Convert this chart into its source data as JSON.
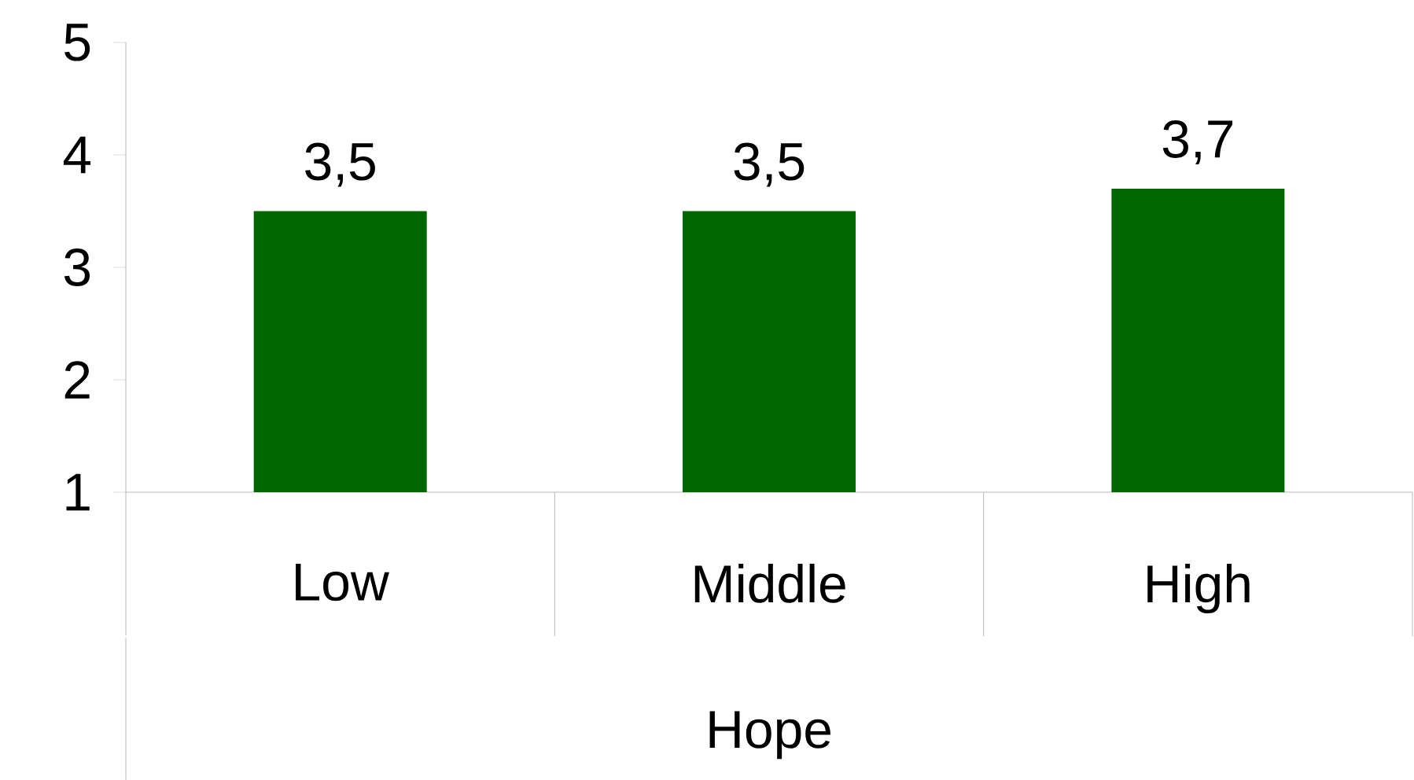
{
  "chart_data": {
    "type": "bar",
    "xlabel": "Hope",
    "categories": [
      "Low",
      "Middle",
      "High"
    ],
    "values": [
      3.5,
      3.5,
      3.7
    ],
    "value_labels": [
      "3,5",
      "3,5",
      "3,7"
    ],
    "color": "#006600",
    "ylim": [
      1,
      5
    ],
    "yticks": [
      1,
      2,
      3,
      4,
      5
    ],
    "grid": false
  }
}
